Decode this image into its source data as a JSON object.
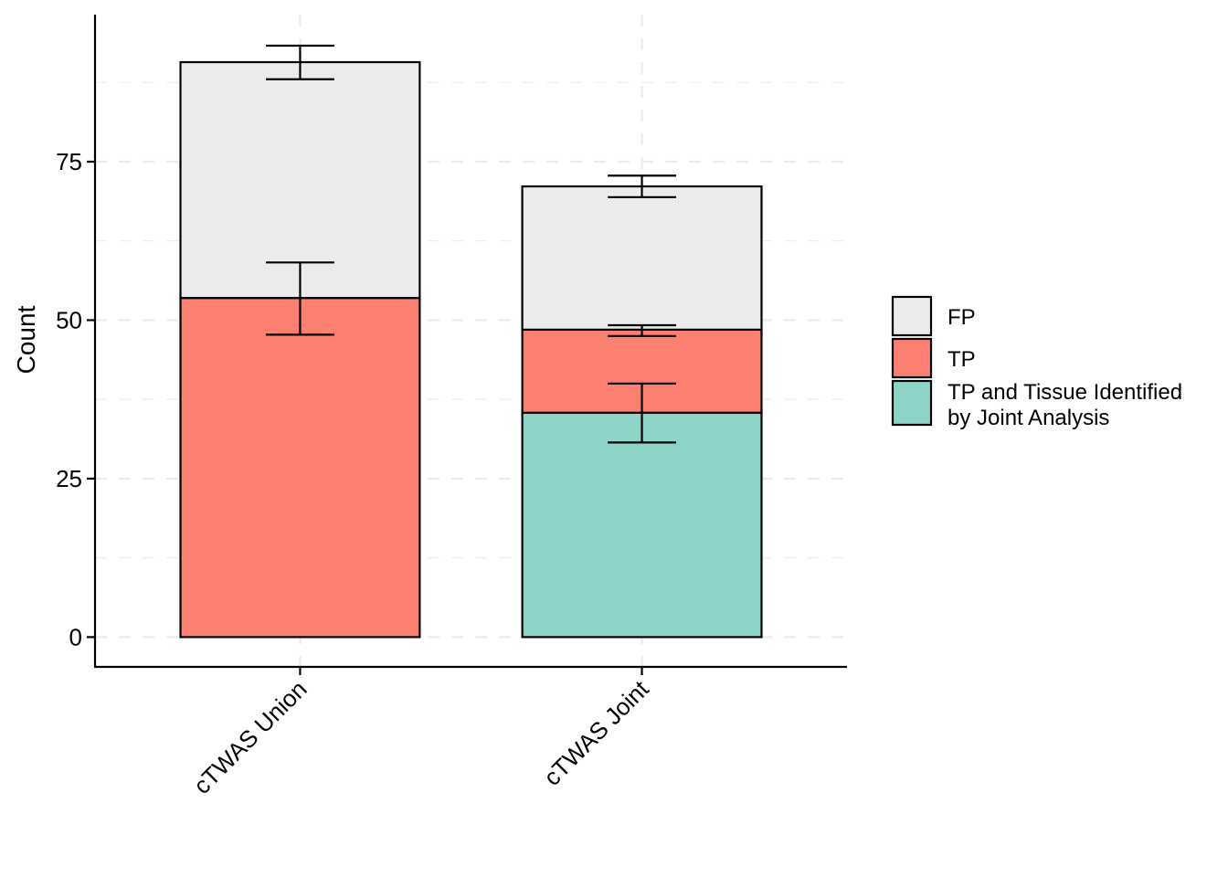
{
  "chart_data": {
    "type": "bar",
    "stacked": true,
    "ylabel": "Count",
    "xlabel": "",
    "ylim": [
      -4.7,
      98.2
    ],
    "yticks": [
      0,
      25,
      50,
      75
    ],
    "grid": true,
    "legend_position": "right",
    "categories": [
      "cTWAS Union",
      "cTWAS Joint"
    ],
    "series": [
      {
        "name": "TP and Tissue Identified by Joint Analysis",
        "legend_lines": [
          "TP and Tissue Identified",
          "by Joint Analysis"
        ],
        "color": "#8ED3C7",
        "values": [
          0,
          35.4
        ],
        "error_low": [
          null,
          30.7
        ],
        "error_high": [
          null,
          40.0
        ]
      },
      {
        "name": "TP",
        "legend_lines": [
          "TP"
        ],
        "color": "#FB8072",
        "values": [
          53.5,
          13.1
        ],
        "error_low": [
          47.7,
          47.5
        ],
        "error_high": [
          59.1,
          49.2
        ]
      },
      {
        "name": "FP",
        "legend_lines": [
          "FP"
        ],
        "color": "#EBEBEB",
        "values": [
          37.2,
          22.6
        ],
        "error_low": [
          88.0,
          69.4
        ],
        "error_high": [
          93.3,
          72.8
        ]
      }
    ],
    "legend_order": [
      "FP",
      "TP",
      "TP and Tissue Identified by Joint Analysis"
    ]
  }
}
